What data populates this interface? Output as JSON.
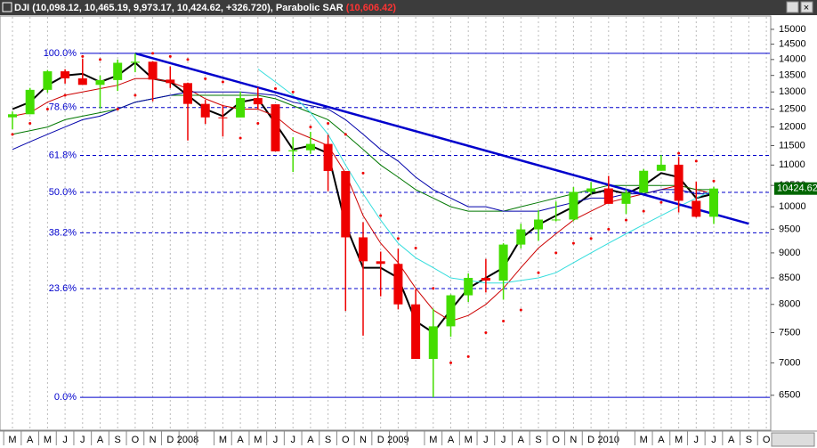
{
  "header": {
    "symbol": "DJI",
    "ohlc": "(10,098.12, 10,465.19, 9,973.17, 10,424.62, +326.720),",
    "indicator": "Parabolic SAR",
    "indicator_value": "(10,606.42)"
  },
  "chart_data": {
    "type": "candlestick",
    "log_scale": true,
    "grid": true,
    "categories": [
      "M",
      "A",
      "M",
      "J",
      "J",
      "A",
      "S",
      "O",
      "N",
      "D",
      "2008",
      null,
      "M",
      "A",
      "M",
      "J",
      "J",
      "A",
      "S",
      "O",
      "N",
      "D",
      "2009",
      null,
      "M",
      "A",
      "M",
      "J",
      "J",
      "A",
      "S",
      "O",
      "N",
      "D",
      "2010",
      null,
      "M",
      "A",
      "M",
      "J",
      "J",
      "A",
      "S",
      "O"
    ],
    "open": [
      12268,
      12354,
      13063,
      13628,
      13409,
      13212,
      13358,
      13896,
      13930,
      13372,
      13265,
      12650,
      12266,
      12263,
      12820,
      12638,
      11350,
      11378,
      11544,
      10851,
      9325,
      8829,
      8776,
      8001,
      7063,
      7609,
      8168,
      8500,
      8447,
      9172,
      9496,
      9712,
      9713,
      10345,
      10428,
      10067,
      10325,
      10857,
      11009,
      10137,
      9774,
      null,
      null,
      null
    ],
    "high": [
      12430,
      13120,
      13670,
      13692,
      14022,
      13498,
      14000,
      14198,
      13950,
      13780,
      13280,
      12767,
      12622,
      13010,
      13136,
      12640,
      11721,
      11867,
      11790,
      10851,
      9654,
      9026,
      9088,
      8281,
      7924,
      8185,
      8588,
      8877,
      9201,
      9620,
      9918,
      10120,
      10460,
      10580,
      10729,
      10404,
      10901,
      11258,
      11205,
      10594,
      10465,
      null,
      null,
      null
    ],
    "low": [
      11940,
      12354,
      12980,
      13250,
      13250,
      12518,
      13029,
      13600,
      12725,
      13117,
      11635,
      12083,
      11740,
      12266,
      12480,
      11347,
      10827,
      11284,
      10365,
      7882,
      7449,
      8149,
      7909,
      7063,
      6470,
      7431,
      8045,
      8221,
      8087,
      9093,
      9252,
      9671,
      9674,
      10286,
      10068,
      9836,
      10325,
      10857,
      9870,
      9758,
      9614,
      null,
      null,
      null
    ],
    "close": [
      12354,
      13063,
      13628,
      13409,
      13212,
      13358,
      13896,
      13930,
      13372,
      13265,
      12650,
      12266,
      12263,
      12820,
      12638,
      11350,
      11378,
      11544,
      10851,
      9325,
      8829,
      8776,
      8001,
      7063,
      7609,
      8168,
      8500,
      8447,
      9172,
      9496,
      9712,
      9713,
      10345,
      10428,
      10067,
      10325,
      10857,
      11009,
      10137,
      9774,
      10425,
      null,
      null,
      null
    ],
    "up_color": "#44dd00",
    "down_color": "#ee0000",
    "overlays": [
      {
        "color": "#000000",
        "width": 2,
        "values": [
          12500,
          12700,
          13200,
          13500,
          13550,
          13300,
          13500,
          13900,
          13400,
          13300,
          12900,
          12500,
          12300,
          12700,
          12800,
          12100,
          11400,
          11500,
          11300,
          9600,
          8700,
          8700,
          8500,
          7700,
          7500,
          7900,
          8300,
          8500,
          8700,
          9300,
          9600,
          9800,
          10000,
          10300,
          10400,
          10300,
          10500,
          10800,
          10700,
          10200,
          10300,
          null,
          null,
          null
        ]
      },
      {
        "color": "#cc0000",
        "width": 1,
        "values": [
          12300,
          12400,
          12700,
          12900,
          13000,
          13100,
          13200,
          13400,
          13400,
          13300,
          13100,
          12800,
          12600,
          12500,
          12500,
          12300,
          11900,
          11700,
          11500,
          10800,
          9800,
          9200,
          8800,
          8300,
          7900,
          7700,
          7800,
          8000,
          8300,
          8700,
          9100,
          9400,
          9700,
          9900,
          10100,
          10200,
          10300,
          10400,
          10500,
          10400,
          10300,
          null,
          null,
          null
        ]
      },
      {
        "color": "#007700",
        "width": 1,
        "values": [
          11800,
          11900,
          12000,
          12200,
          12300,
          12400,
          12500,
          12700,
          12800,
          12900,
          12900,
          12900,
          12900,
          12900,
          12900,
          12800,
          12600,
          12400,
          12200,
          11800,
          11400,
          11000,
          10700,
          10400,
          10200,
          10000,
          9900,
          9900,
          9900,
          10000,
          10100,
          10200,
          10300,
          10400,
          10500,
          10500,
          10500,
          10500,
          10500,
          10400,
          10400,
          null,
          null,
          null
        ]
      },
      {
        "color": "#0000aa",
        "width": 1,
        "values": [
          11400,
          11600,
          11800,
          12000,
          12200,
          12300,
          12500,
          12700,
          12800,
          12900,
          13000,
          13000,
          13000,
          13000,
          12950,
          12900,
          12700,
          12600,
          12500,
          12200,
          11800,
          11400,
          11100,
          10700,
          10400,
          10200,
          10000,
          10000,
          9900,
          9900,
          9900,
          10000,
          10100,
          10200,
          10200,
          10300,
          10300,
          10400,
          10400,
          10300,
          10300,
          null,
          null,
          null
        ]
      },
      {
        "color": "#33dddd",
        "width": 1,
        "values": [
          null,
          null,
          null,
          null,
          null,
          null,
          null,
          null,
          null,
          null,
          null,
          null,
          null,
          null,
          13700,
          13300,
          12900,
          12400,
          11800,
          11000,
          10300,
          9700,
          9200,
          8900,
          8700,
          8500,
          8450,
          8400,
          8400,
          8450,
          8500,
          8600,
          8800,
          9000,
          9200,
          9400,
          9600,
          9800,
          10000,
          10200,
          10400,
          null,
          null,
          null
        ]
      }
    ],
    "sar": {
      "color": "#ee0000",
      "values": [
        11800,
        12100,
        12500,
        12900,
        14100,
        14000,
        12500,
        12900,
        14200,
        14100,
        14000,
        13400,
        13300,
        11700,
        12100,
        13100,
        13000,
        12000,
        12100,
        11800,
        10800,
        9800,
        9300,
        9100,
        8300,
        7000,
        7100,
        7500,
        7700,
        7900,
        8600,
        9000,
        9200,
        9300,
        9500,
        9700,
        9900,
        10100,
        11300,
        11100,
        10606,
        null,
        null,
        null
      ]
    },
    "trendline": {
      "color": "#0000cc",
      "x": [
        7,
        42
      ],
      "values": [
        14198,
        9620
      ]
    },
    "fib_color": "#0000cc",
    "fib_levels": [
      {
        "value": 14198,
        "label": "100.0%"
      },
      {
        "value": 12544,
        "label": "78.6%"
      },
      {
        "value": 11246,
        "label": "61.8%"
      },
      {
        "value": 10334,
        "label": "50.0%"
      },
      {
        "value": 9422,
        "label": "38.2%"
      },
      {
        "value": 8294,
        "label": "23.6%"
      },
      {
        "value": 6470,
        "label": "0.0%"
      }
    ],
    "last_price": 10424.62,
    "ylim": [
      6100,
      15400
    ],
    "yticks": [
      6500,
      7000,
      7500,
      8000,
      8500,
      9000,
      9500,
      10000,
      10500,
      11000,
      11500,
      12000,
      12500,
      13000,
      13500,
      14000,
      14500,
      15000
    ]
  }
}
